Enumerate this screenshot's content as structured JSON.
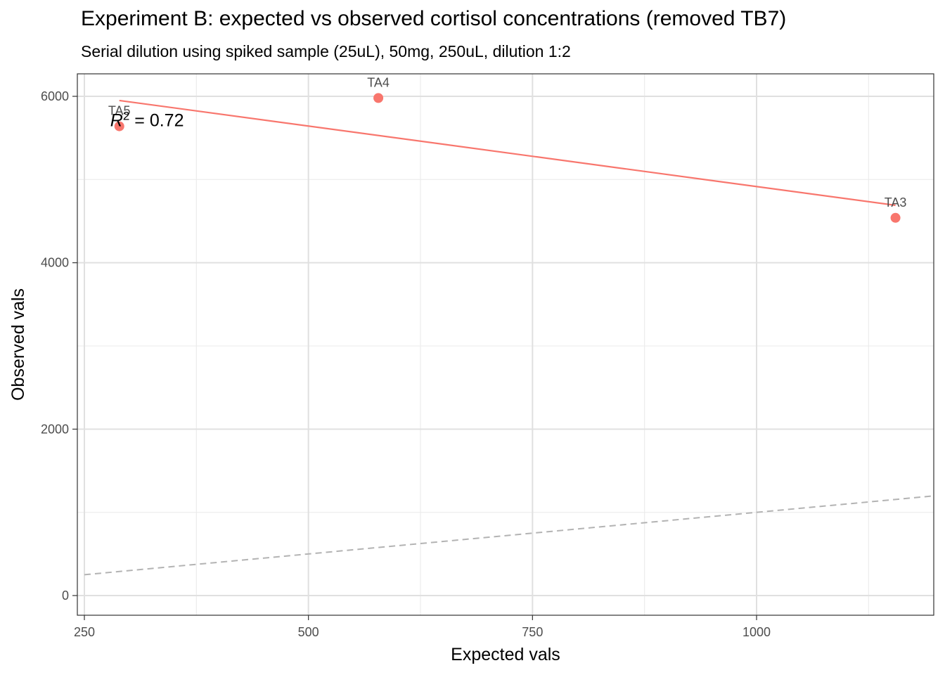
{
  "chart_data": {
    "type": "scatter",
    "title": "Experiment B: expected vs observed cortisol concentrations (removed TB7)",
    "subtitle": "Serial dilution using spiked sample (25uL), 50mg, 250uL, dilution 1:2",
    "xlabel": "Expected vals",
    "ylabel": "Observed vals",
    "xlim": [
      250,
      1200
    ],
    "ylim": [
      0,
      6250
    ],
    "x_ticks": [
      250,
      500,
      750,
      1000
    ],
    "y_ticks": [
      0,
      2000,
      4000,
      6000
    ],
    "grid": true,
    "legend": "none",
    "point_color": "#F8766D",
    "fit_color": "#F8766D",
    "identity_color": "#b3b3b3",
    "points": [
      {
        "label": "TA5",
        "x": 289,
        "y": 5640
      },
      {
        "label": "TA4",
        "x": 578,
        "y": 5980
      },
      {
        "label": "TA3",
        "x": 1155,
        "y": 4540
      }
    ],
    "fit_line": {
      "x": [
        289,
        1155
      ],
      "y": [
        5950,
        4690
      ]
    },
    "identity_line": {
      "x": [
        250,
        1200
      ],
      "y": [
        250,
        1200
      ]
    },
    "annotation": {
      "prefix": "R",
      "superscript": "2",
      "value_text": " = 0.72",
      "x": 293,
      "y": 5690
    }
  }
}
